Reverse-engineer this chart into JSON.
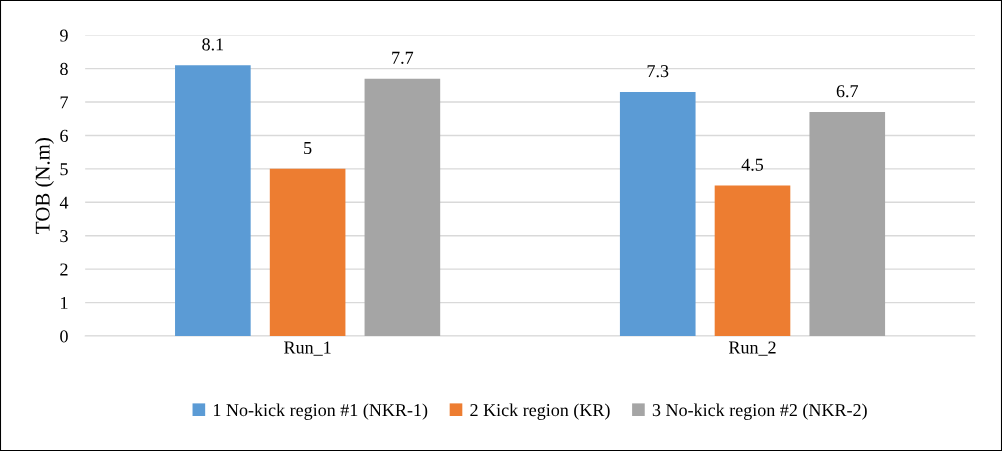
{
  "chart_data": {
    "type": "bar",
    "ylabel": "TOB (N.m)",
    "categories": [
      "Run_1",
      "Run_2"
    ],
    "series": [
      {
        "name": "1 No-kick region #1 (NKR-1)",
        "color": "#5b9bd5",
        "values": [
          8.1,
          7.3
        ]
      },
      {
        "name": "2 Kick region (KR)",
        "color": "#ed7d31",
        "values": [
          5,
          4.5
        ]
      },
      {
        "name": "3 No-kick region #2 (NKR-2)",
        "color": "#a5a5a5",
        "values": [
          7.7,
          6.7
        ]
      }
    ],
    "ylim": [
      0,
      9
    ],
    "yticks": [
      0,
      1,
      2,
      3,
      4,
      5,
      6,
      7,
      8,
      9
    ],
    "grid": "y",
    "legend": "bottom",
    "data_labels": true
  }
}
